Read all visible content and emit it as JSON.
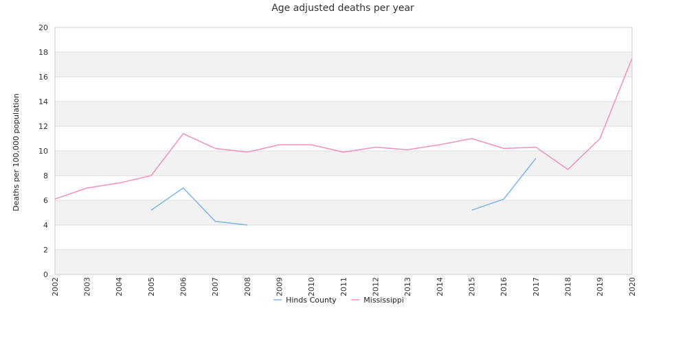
{
  "chart_data": {
    "type": "line",
    "title": "Age adjusted deaths per year",
    "xlabel": "",
    "ylabel": "Deaths per 100,000 population",
    "ylim": [
      0,
      20
    ],
    "yticks": [
      0,
      2,
      4,
      6,
      8,
      10,
      12,
      14,
      16,
      18,
      20
    ],
    "grid": true,
    "legend_position": "bottom",
    "categories": [
      "2002",
      "2003",
      "2004",
      "2005",
      "2006",
      "2007",
      "2008",
      "2009",
      "2010",
      "2011",
      "2012",
      "2013",
      "2014",
      "2015",
      "2016",
      "2017",
      "2018",
      "2019",
      "2020"
    ],
    "tick_labels": [
      "2002",
      "2003",
      "2004",
      "2005",
      "2006",
      "2007",
      "2008",
      "2009",
      "2010",
      "2011",
      "2012",
      "2013",
      "2014",
      "2015",
      "2016",
      "2017",
      "2018",
      "2019",
      "2020"
    ],
    "series": [
      {
        "name": "Hinds County",
        "color": "#7cb5ec",
        "values": [
          null,
          null,
          null,
          5.2,
          7.0,
          4.3,
          4.0,
          null,
          null,
          null,
          null,
          null,
          null,
          5.2,
          6.1,
          9.4,
          null,
          null,
          null
        ]
      },
      {
        "name": "Mississippi",
        "color": "#f28fbd",
        "values": [
          6.1,
          7.0,
          7.4,
          8.0,
          11.4,
          10.2,
          9.9,
          10.5,
          10.5,
          9.9,
          10.3,
          10.1,
          10.5,
          11.0,
          10.2,
          10.3,
          8.5,
          11.0,
          17.5
        ]
      }
    ],
    "colors": {
      "band_fill": "#f2f2f2",
      "grid_line": "#dddddd",
      "border": "#cccccc"
    }
  }
}
